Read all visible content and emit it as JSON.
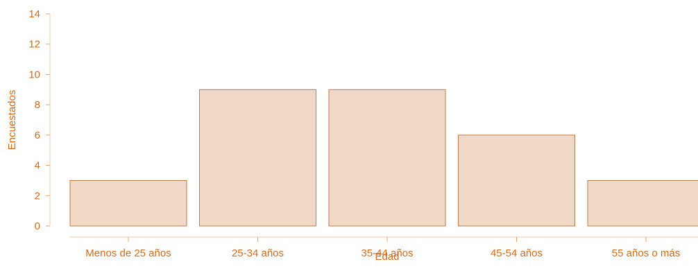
{
  "chart_data": {
    "type": "bar",
    "categories": [
      "Menos de 25 años",
      "25-34 años",
      "35-44 años",
      "45-54 años",
      "55 años o más"
    ],
    "values": [
      3,
      9,
      9,
      6,
      3
    ],
    "title": "",
    "xlabel": "Edad",
    "ylabel": "Encuestados",
    "ylim": [
      0,
      14
    ],
    "yticks": [
      0,
      2,
      4,
      6,
      8,
      10,
      12,
      14
    ],
    "grid": false,
    "colors": {
      "bar_fill": "#f0d8c6",
      "bar_stroke": "#c07a45",
      "text": "#d46a1a",
      "axis": "#f3c9a8"
    }
  }
}
